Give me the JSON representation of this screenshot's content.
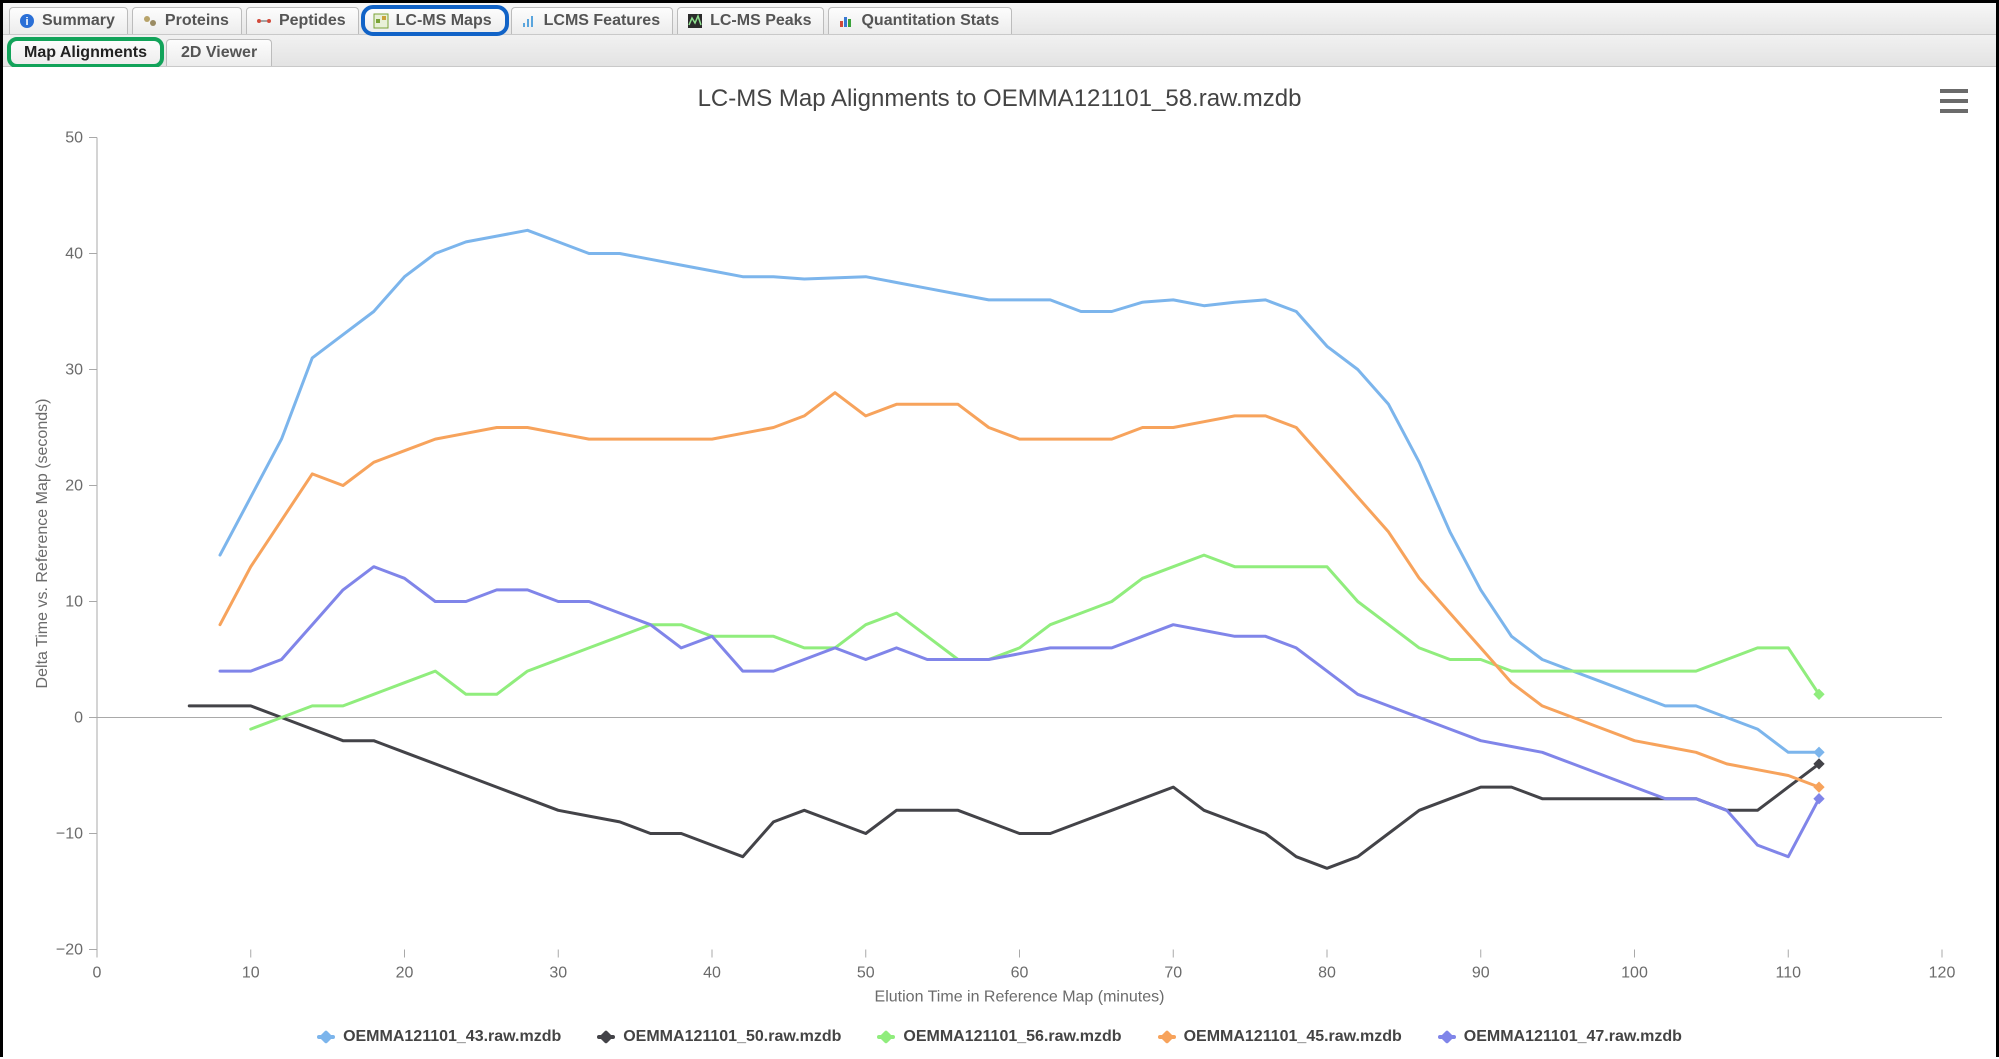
{
  "tabs": {
    "primary": [
      {
        "label": "Summary",
        "icon": "info-icon",
        "icon_color": "#2a6fd6"
      },
      {
        "label": "Proteins",
        "icon": "proteins-icon",
        "icon_color": "#9a8b63"
      },
      {
        "label": "Peptides",
        "icon": "peptides-icon",
        "icon_color": "#d24a3a"
      },
      {
        "label": "LC-MS Maps",
        "icon": "lcms-maps-icon",
        "icon_color": "#5aa02c",
        "highlight": "blue"
      },
      {
        "label": "LCMS Features",
        "icon": "lcms-features-icon",
        "icon_color": "#5aa5dd"
      },
      {
        "label": "LC-MS Peaks",
        "icon": "lcms-peaks-icon",
        "icon_color": "#2b2b2b"
      },
      {
        "label": "Quantitation Stats",
        "icon": "stats-icon",
        "icon_color": "#d24a3a"
      }
    ],
    "secondary": [
      {
        "label": "Map Alignments",
        "active": true,
        "highlight": "green"
      },
      {
        "label": "2D Viewer",
        "active": false
      }
    ]
  },
  "chart": {
    "type": "line",
    "title": "LC-MS Map Alignments to OEMMA121101_58.raw.mzdb",
    "xlabel": "Elution Time in Reference Map (minutes)",
    "ylabel": "Delta Time vs. Reference Map (seconds)",
    "title_fontsize": 24,
    "label_fontsize": 16,
    "tick_fontsize": 16,
    "background_color": "#ffffff",
    "axis_color": "#a9a9a9",
    "tick_color": "#6b6b6b",
    "line_width": 3,
    "xlim": [
      0,
      120
    ],
    "ylim": [
      -20,
      50
    ],
    "xtick_step": 10,
    "ytick_step": 10,
    "xticks": [
      0,
      10,
      20,
      30,
      40,
      50,
      60,
      70,
      80,
      90,
      100,
      110,
      120
    ],
    "yticks": [
      -20,
      -10,
      0,
      10,
      20,
      30,
      40,
      50
    ],
    "series": [
      {
        "name": "OEMMA121101_43.raw.mzdb",
        "color": "#7cb5ec",
        "marker": "diamond",
        "x": [
          8,
          10,
          12,
          14,
          16,
          18,
          20,
          22,
          24,
          26,
          28,
          30,
          32,
          34,
          36,
          38,
          40,
          42,
          44,
          46,
          48,
          50,
          52,
          54,
          56,
          58,
          60,
          62,
          64,
          66,
          68,
          70,
          72,
          74,
          76,
          78,
          80,
          82,
          84,
          86,
          88,
          90,
          92,
          94,
          96,
          98,
          100,
          102,
          104,
          106,
          108,
          110,
          112
        ],
        "y": [
          14,
          19,
          24,
          31,
          33,
          35,
          38,
          40,
          41,
          41.5,
          42,
          41,
          40,
          40,
          39.5,
          39,
          38.5,
          38,
          38,
          37.8,
          37.9,
          38,
          37.5,
          37,
          36.5,
          36,
          36,
          36,
          35,
          35,
          35.8,
          36,
          35.5,
          35.8,
          36,
          35,
          32,
          30,
          27,
          22,
          16,
          11,
          7,
          5,
          4,
          3,
          2,
          1,
          1,
          0,
          -1,
          -3,
          -3
        ]
      },
      {
        "name": "OEMMA121101_50.raw.mzdb",
        "color": "#434348",
        "marker": "diamond",
        "x": [
          6,
          8,
          10,
          12,
          14,
          16,
          18,
          20,
          22,
          24,
          26,
          28,
          30,
          32,
          34,
          36,
          38,
          40,
          42,
          44,
          46,
          48,
          50,
          52,
          54,
          56,
          58,
          60,
          62,
          64,
          66,
          68,
          70,
          72,
          74,
          76,
          78,
          80,
          82,
          84,
          86,
          88,
          90,
          92,
          94,
          96,
          98,
          100,
          102,
          104,
          106,
          108,
          110,
          112
        ],
        "y": [
          1,
          1,
          1,
          0,
          -1,
          -2,
          -2,
          -3,
          -4,
          -5,
          -6,
          -7,
          -8,
          -8.5,
          -9,
          -10,
          -10,
          -11,
          -12,
          -9,
          -8,
          -9,
          -10,
          -8,
          -8,
          -8,
          -9,
          -10,
          -10,
          -9,
          -8,
          -7,
          -6,
          -8,
          -9,
          -10,
          -12,
          -13,
          -12,
          -10,
          -8,
          -7,
          -6,
          -6,
          -7,
          -7,
          -7,
          -7,
          -7,
          -7,
          -8,
          -8,
          -6,
          -4
        ]
      },
      {
        "name": "OEMMA121101_56.raw.mzdb",
        "color": "#90ed7d",
        "marker": "square",
        "x": [
          10,
          12,
          14,
          16,
          18,
          20,
          22,
          24,
          26,
          28,
          30,
          32,
          34,
          36,
          38,
          40,
          42,
          44,
          46,
          48,
          50,
          52,
          54,
          56,
          58,
          60,
          62,
          64,
          66,
          68,
          70,
          72,
          74,
          76,
          78,
          80,
          82,
          84,
          86,
          88,
          90,
          92,
          94,
          96,
          98,
          100,
          102,
          104,
          106,
          108,
          110,
          112
        ],
        "y": [
          -1,
          0,
          1,
          1,
          2,
          3,
          4,
          2,
          2,
          4,
          5,
          6,
          7,
          8,
          8,
          7,
          7,
          7,
          6,
          6,
          8,
          9,
          7,
          5,
          5,
          6,
          8,
          9,
          10,
          12,
          13,
          14,
          13,
          13,
          13,
          13,
          10,
          8,
          6,
          5,
          5,
          4,
          4,
          4,
          4,
          4,
          4,
          4,
          5,
          6,
          6,
          2
        ]
      },
      {
        "name": "OEMMA121101_45.raw.mzdb",
        "color": "#f7a35c",
        "marker": "diamond",
        "x": [
          8,
          10,
          12,
          14,
          16,
          18,
          20,
          22,
          24,
          26,
          28,
          30,
          32,
          34,
          36,
          38,
          40,
          42,
          44,
          46,
          48,
          50,
          52,
          54,
          56,
          58,
          60,
          62,
          64,
          66,
          68,
          70,
          72,
          74,
          76,
          78,
          80,
          82,
          84,
          86,
          88,
          90,
          92,
          94,
          96,
          98,
          100,
          102,
          104,
          106,
          108,
          110,
          112
        ],
        "y": [
          8,
          13,
          17,
          21,
          20,
          22,
          23,
          24,
          24.5,
          25,
          25,
          24.5,
          24,
          24,
          24,
          24,
          24,
          24.5,
          25,
          26,
          28,
          26,
          27,
          27,
          27,
          25,
          24,
          24,
          24,
          24,
          25,
          25,
          25.5,
          26,
          26,
          25,
          22,
          19,
          16,
          12,
          9,
          6,
          3,
          1,
          0,
          -1,
          -2,
          -2.5,
          -3,
          -4,
          -4.5,
          -5,
          -6
        ]
      },
      {
        "name": "OEMMA121101_47.raw.mzdb",
        "color": "#8085e9",
        "marker": "diamond",
        "x": [
          8,
          10,
          12,
          14,
          16,
          18,
          20,
          22,
          24,
          26,
          28,
          30,
          32,
          34,
          36,
          38,
          40,
          42,
          44,
          46,
          48,
          50,
          52,
          54,
          56,
          58,
          60,
          62,
          64,
          66,
          68,
          70,
          72,
          74,
          76,
          78,
          80,
          82,
          84,
          86,
          88,
          90,
          92,
          94,
          96,
          98,
          100,
          102,
          104,
          106,
          108,
          110,
          112
        ],
        "y": [
          4,
          4,
          5,
          8,
          11,
          13,
          12,
          10,
          10,
          11,
          11,
          10,
          10,
          9,
          8,
          6,
          7,
          4,
          4,
          5,
          6,
          5,
          6,
          5,
          5,
          5,
          5.5,
          6,
          6,
          6,
          7,
          8,
          7.5,
          7,
          7,
          6,
          4,
          2,
          1,
          0,
          -1,
          -2,
          -2.5,
          -3,
          -4,
          -5,
          -6,
          -7,
          -7,
          -8,
          -11,
          -12,
          -7
        ]
      }
    ]
  },
  "legend": [
    {
      "label": "OEMMA121101_43.raw.mzdb",
      "color": "#7cb5ec"
    },
    {
      "label": "OEMMA121101_50.raw.mzdb",
      "color": "#434348"
    },
    {
      "label": "OEMMA121101_56.raw.mzdb",
      "color": "#90ed7d"
    },
    {
      "label": "OEMMA121101_45.raw.mzdb",
      "color": "#f7a35c"
    },
    {
      "label": "OEMMA121101_47.raw.mzdb",
      "color": "#8085e9"
    }
  ]
}
